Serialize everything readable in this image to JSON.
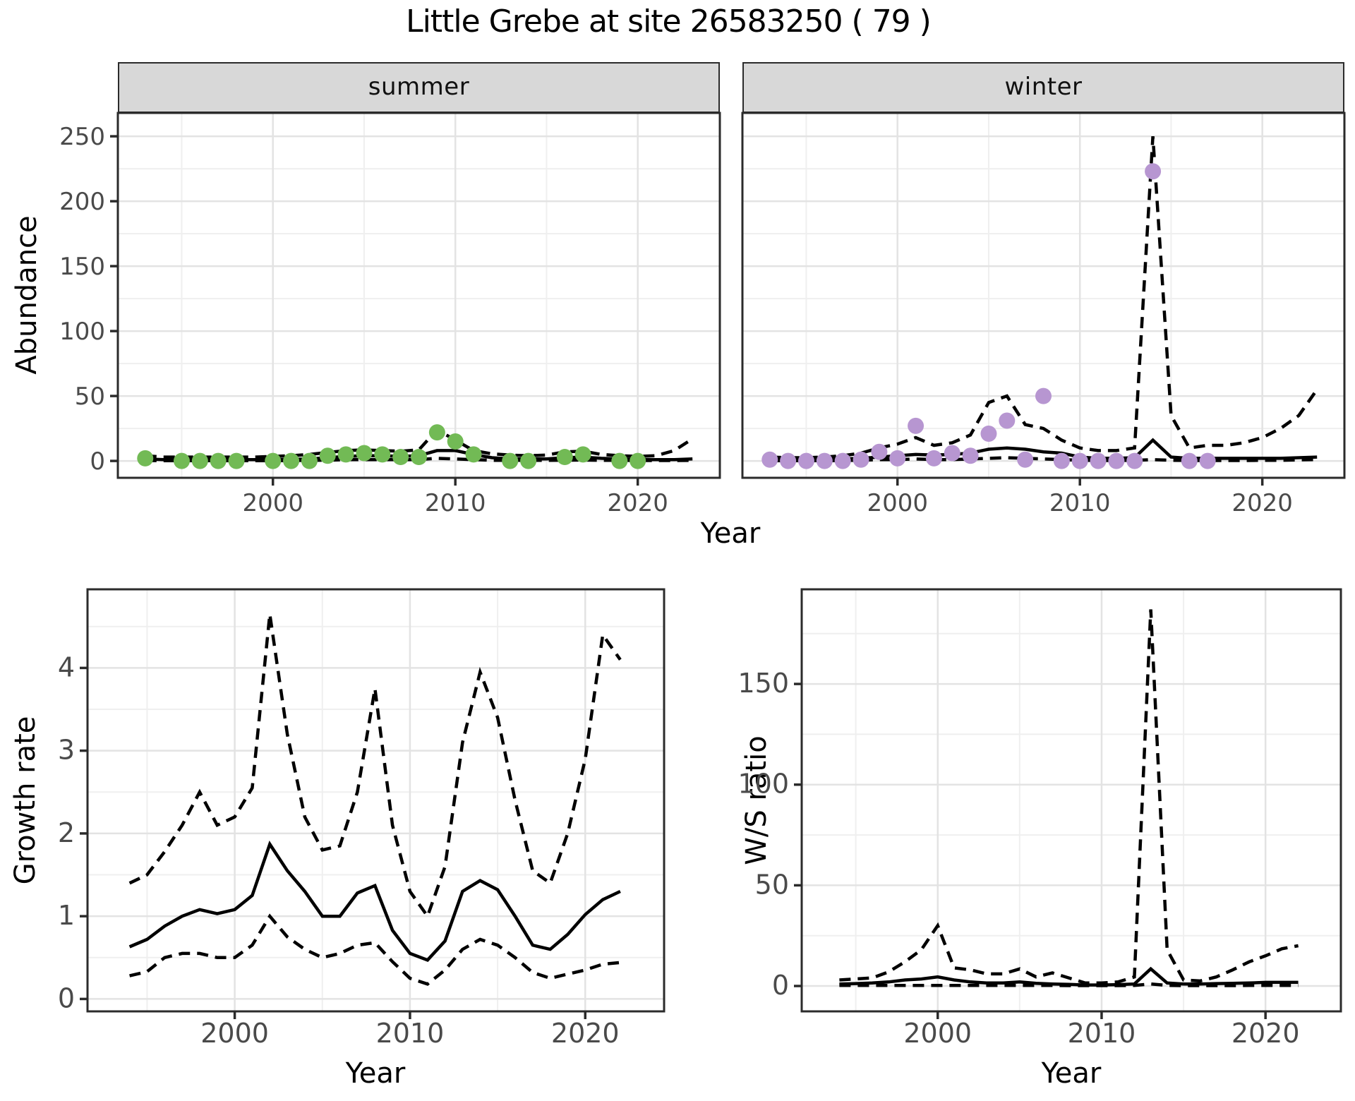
{
  "title": "Little Grebe at site 26583250 ( 79 )",
  "colors": {
    "summer_point": "#72ba55",
    "winter_point": "#b796d1",
    "line": "#000000",
    "grid_major": "#e3e3e3",
    "grid_minor": "#efefef",
    "panel_border": "#2b2b2b",
    "strip_bg": "#d8d8d8",
    "tick_label": "#4a4a4a"
  },
  "chart_data": [
    {
      "id": "abundance_summer",
      "type": "line",
      "facet_label": "summer",
      "xlabel": "Year",
      "ylabel": "Abundance",
      "xlim": [
        1991.5,
        2024.5
      ],
      "ylim": [
        -13,
        268
      ],
      "xticks": [
        2000,
        2010,
        2020
      ],
      "xticks_minor": [
        1995,
        2005,
        2015
      ],
      "yticks": [
        0,
        50,
        100,
        150,
        200,
        250
      ],
      "yticks_minor": [
        25,
        75,
        125,
        175,
        225
      ],
      "grid": true,
      "legend": "none",
      "line_years": [
        1993,
        1994,
        1995,
        1996,
        1997,
        1998,
        1999,
        2000,
        2001,
        2002,
        2003,
        2004,
        2005,
        2006,
        2007,
        2008,
        2009,
        2010,
        2011,
        2012,
        2013,
        2014,
        2015,
        2016,
        2017,
        2018,
        2019,
        2020,
        2021,
        2022,
        2023
      ],
      "median": [
        1.5,
        1,
        1,
        1,
        1,
        1,
        1,
        1,
        1.2,
        1.5,
        2.5,
        3.5,
        4,
        4,
        3.5,
        4,
        8,
        8,
        5,
        2.5,
        1.5,
        1.5,
        1.5,
        2.5,
        3,
        2,
        1.5,
        1,
        1,
        1,
        1.5
      ],
      "upper": [
        4,
        3,
        3,
        3,
        3,
        3,
        3,
        3.5,
        4,
        5,
        6.5,
        8,
        8.5,
        8,
        7.5,
        8.5,
        24,
        16,
        8,
        5.5,
        4.5,
        4,
        4.5,
        7,
        7.5,
        5,
        4,
        3.5,
        4,
        8,
        17
      ],
      "lower": [
        0.3,
        0.2,
        0.2,
        0.2,
        0.2,
        0.2,
        0.2,
        0.2,
        0.3,
        0.4,
        0.6,
        1,
        1,
        1,
        1,
        1,
        2,
        1.5,
        1,
        0.5,
        0.4,
        0.4,
        0.4,
        0.6,
        0.7,
        0.5,
        0.4,
        0.3,
        0.3,
        0.3,
        0.4
      ],
      "points": [
        [
          1993,
          2
        ],
        [
          1995,
          0
        ],
        [
          1996,
          0
        ],
        [
          1997,
          0
        ],
        [
          1998,
          0
        ],
        [
          2000,
          0
        ],
        [
          2001,
          0
        ],
        [
          2002,
          0
        ],
        [
          2003,
          4
        ],
        [
          2004,
          5
        ],
        [
          2005,
          6
        ],
        [
          2006,
          5
        ],
        [
          2007,
          3
        ],
        [
          2008,
          3
        ],
        [
          2009,
          22
        ],
        [
          2010,
          15
        ],
        [
          2011,
          5
        ],
        [
          2013,
          0
        ],
        [
          2014,
          0
        ],
        [
          2016,
          3
        ],
        [
          2017,
          5
        ],
        [
          2019,
          0
        ],
        [
          2020,
          0
        ]
      ],
      "point_color": "#72ba55"
    },
    {
      "id": "abundance_winter",
      "type": "line",
      "facet_label": "winter",
      "xlabel": "Year",
      "ylabel": "Abundance",
      "xlim": [
        1991.5,
        2024.5
      ],
      "ylim": [
        -13,
        268
      ],
      "xticks": [
        2000,
        2010,
        2020
      ],
      "xticks_minor": [
        1995,
        2005,
        2015
      ],
      "yticks": [
        0,
        50,
        100,
        150,
        200,
        250
      ],
      "yticks_minor": [
        25,
        75,
        125,
        175,
        225
      ],
      "grid": true,
      "legend": "none",
      "line_years": [
        1993,
        1994,
        1995,
        1996,
        1997,
        1998,
        1999,
        2000,
        2001,
        2002,
        2003,
        2004,
        2005,
        2006,
        2007,
        2008,
        2009,
        2010,
        2011,
        2012,
        2013,
        2014,
        2015,
        2016,
        2017,
        2018,
        2019,
        2020,
        2021,
        2022,
        2023
      ],
      "median": [
        1,
        1,
        1,
        1,
        1.5,
        2,
        3,
        4,
        5,
        4.5,
        5,
        6,
        9,
        10,
        9,
        7,
        6,
        3,
        2,
        2,
        2.5,
        16,
        3,
        2,
        2,
        2,
        2,
        2,
        2,
        2.5,
        3
      ],
      "upper": [
        3,
        2.5,
        2.5,
        3,
        4,
        6,
        10,
        13,
        18,
        12,
        14,
        20,
        45,
        50,
        28,
        25,
        16,
        10,
        8,
        8,
        10,
        250,
        35,
        10,
        12,
        12,
        14,
        18,
        25,
        35,
        55
      ],
      "lower": [
        0.2,
        0.2,
        0.2,
        0.2,
        0.3,
        0.5,
        1,
        1,
        1.5,
        1,
        1,
        1.5,
        2,
        2.5,
        2,
        1.5,
        1,
        0.5,
        0.3,
        0.3,
        0.5,
        1,
        0.5,
        0.3,
        0.3,
        0.3,
        0.3,
        0.5,
        0.5,
        0.8,
        1
      ],
      "points": [
        [
          1993,
          1
        ],
        [
          1994,
          0
        ],
        [
          1995,
          0
        ],
        [
          1996,
          0
        ],
        [
          1997,
          0
        ],
        [
          1998,
          1
        ],
        [
          1999,
          7
        ],
        [
          2000,
          2
        ],
        [
          2001,
          27
        ],
        [
          2002,
          2
        ],
        [
          2003,
          6
        ],
        [
          2004,
          4
        ],
        [
          2005,
          21
        ],
        [
          2006,
          31
        ],
        [
          2007,
          1
        ],
        [
          2008,
          50
        ],
        [
          2009,
          0
        ],
        [
          2010,
          0
        ],
        [
          2011,
          0
        ],
        [
          2012,
          0
        ],
        [
          2013,
          0
        ],
        [
          2014,
          223
        ],
        [
          2016,
          0
        ],
        [
          2017,
          0
        ]
      ],
      "point_color": "#b796d1"
    },
    {
      "id": "growth_rate",
      "type": "line",
      "facet_label": "",
      "xlabel": "Year",
      "ylabel": "Growth rate",
      "xlim": [
        1991.6,
        2024.5
      ],
      "ylim": [
        -0.15,
        4.95
      ],
      "xticks": [
        2000,
        2010,
        2020
      ],
      "xticks_minor": [
        1995,
        2005,
        2015
      ],
      "yticks": [
        0,
        1,
        2,
        3,
        4
      ],
      "yticks_minor": [
        0.5,
        1.5,
        2.5,
        3.5,
        4.5
      ],
      "grid": true,
      "legend": "none",
      "line_years": [
        1994,
        1995,
        1996,
        1997,
        1998,
        1999,
        2000,
        2001,
        2002,
        2003,
        2004,
        2005,
        2006,
        2007,
        2008,
        2009,
        2010,
        2011,
        2012,
        2013,
        2014,
        2015,
        2016,
        2017,
        2018,
        2019,
        2020,
        2021,
        2022
      ],
      "median": [
        0.63,
        0.72,
        0.88,
        1.0,
        1.08,
        1.03,
        1.08,
        1.25,
        1.87,
        1.55,
        1.3,
        1.0,
        1.0,
        1.28,
        1.37,
        0.83,
        0.55,
        0.47,
        0.7,
        1.3,
        1.43,
        1.32,
        1.0,
        0.65,
        0.6,
        0.78,
        1.02,
        1.2,
        1.3
      ],
      "upper": [
        1.4,
        1.5,
        1.78,
        2.1,
        2.5,
        2.1,
        2.2,
        2.55,
        4.65,
        3.2,
        2.2,
        1.8,
        1.85,
        2.5,
        3.75,
        2.1,
        1.3,
        1.0,
        1.6,
        3.1,
        3.95,
        3.4,
        2.4,
        1.55,
        1.4,
        2.0,
        2.9,
        4.4,
        4.1
      ],
      "lower": [
        0.28,
        0.33,
        0.5,
        0.55,
        0.55,
        0.5,
        0.5,
        0.65,
        1.0,
        0.75,
        0.6,
        0.5,
        0.55,
        0.65,
        0.68,
        0.45,
        0.25,
        0.18,
        0.35,
        0.6,
        0.72,
        0.65,
        0.5,
        0.32,
        0.25,
        0.3,
        0.35,
        0.42,
        0.44
      ],
      "points": [],
      "point_color": "#000000"
    },
    {
      "id": "ws_ratio",
      "type": "line",
      "facet_label": "",
      "xlabel": "Year",
      "ylabel": "W/S ratio",
      "xlim": [
        1991.7,
        2024.6
      ],
      "ylim": [
        -12.6,
        197
      ],
      "xticks": [
        2000,
        2010,
        2020
      ],
      "xticks_minor": [
        1995,
        2005,
        2015
      ],
      "yticks": [
        0,
        50,
        100,
        150
      ],
      "yticks_minor": [
        25,
        75,
        125,
        175
      ],
      "grid": true,
      "legend": "none",
      "line_years": [
        1994,
        1995,
        1996,
        1997,
        1998,
        1999,
        2000,
        2001,
        2002,
        2003,
        2004,
        2005,
        2006,
        2007,
        2008,
        2009,
        2010,
        2011,
        2012,
        2013,
        2014,
        2015,
        2016,
        2017,
        2018,
        2019,
        2020,
        2021,
        2022
      ],
      "median": [
        1,
        1.2,
        1.5,
        2,
        3,
        3.5,
        4.5,
        3,
        2,
        1.5,
        1.5,
        2,
        1.3,
        1,
        0.8,
        0.5,
        0.5,
        0.7,
        1,
        8.5,
        1.5,
        1,
        1,
        1.2,
        1.3,
        1.5,
        1.8,
        1.8,
        1.8
      ],
      "upper": [
        3,
        3.5,
        4,
        7,
        12,
        18,
        30,
        9,
        8,
        6,
        6,
        8.5,
        4.5,
        6.5,
        4,
        1.5,
        1.5,
        2,
        4.5,
        187,
        18,
        3,
        2.5,
        4.5,
        8,
        12,
        15,
        18.5,
        20
      ],
      "lower": [
        0.3,
        0.3,
        0.3,
        0.3,
        0.3,
        0.3,
        0.3,
        0.3,
        0.3,
        0.3,
        0.3,
        0.3,
        0.3,
        0.3,
        0.2,
        0.2,
        0.2,
        0.2,
        0.3,
        1,
        0.3,
        0.2,
        0.2,
        0.2,
        0.2,
        0.3,
        0.3,
        0.3,
        0.3
      ],
      "points": [],
      "point_color": "#000000"
    }
  ]
}
